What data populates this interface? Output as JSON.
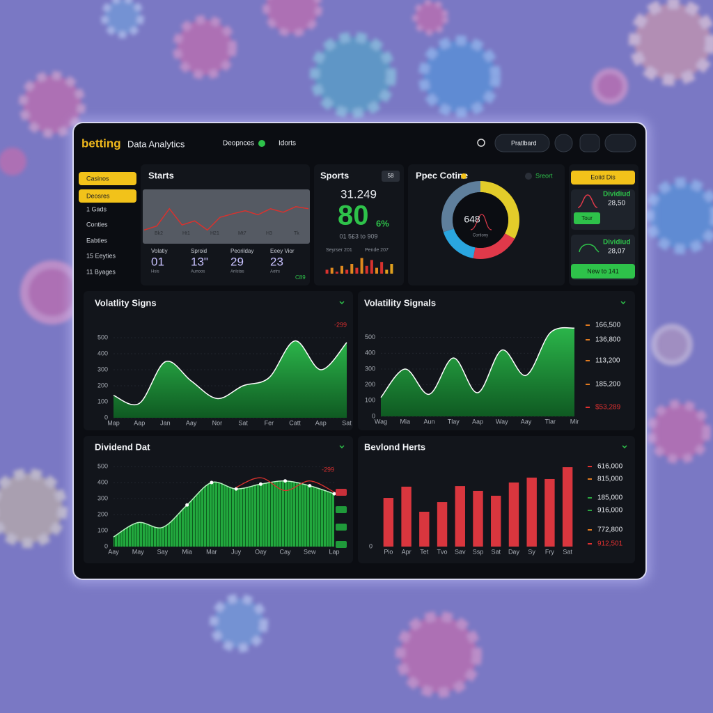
{
  "header": {
    "logo": "betting",
    "title": "Data Analytics",
    "nav": [
      "Deopnces",
      "Idorts"
    ],
    "button": "Pratlbard"
  },
  "sidebar": {
    "items": [
      "Casinos",
      "Deosres",
      "1 Gads",
      "Conties",
      "Eabties",
      "15 Eeyties",
      "11 Byages"
    ]
  },
  "starts": {
    "title": "Starts",
    "axis_labels": [
      "Bk2",
      "Ht1",
      "H21",
      "Mt7",
      "H3",
      "Tk"
    ],
    "stats": [
      {
        "label": "Volatiy",
        "value": "01",
        "sub": "Hsis"
      },
      {
        "label": "Sproid",
        "value": "13\"",
        "sub": "Aunoos"
      },
      {
        "label": "Peorilday",
        "value": "29",
        "sub": "Anlstas"
      },
      {
        "label": "Eeey Vior",
        "value": "23",
        "sub": "Aotrs"
      }
    ],
    "tag": "C89"
  },
  "sports": {
    "title": "Sports",
    "badge": "58",
    "amount": "31.249",
    "big": "80",
    "pct": "6%",
    "sub": "01 5£3 to 909",
    "foot": [
      "Seyrser 201",
      "Pende 207"
    ]
  },
  "donut_panel": {
    "title": "Ppec Cotine",
    "legend": "Sreort"
  },
  "dividends": {
    "button": "Eoiid Dis",
    "cards": [
      {
        "title": "Dividiud",
        "value": "28,50",
        "button": "Tour"
      },
      {
        "title": "Dividiud",
        "value": "28,07",
        "button": "New to 141"
      }
    ]
  },
  "chart_data": [
    {
      "type": "line",
      "color": "#d8322e",
      "ylim": [
        0,
        100
      ],
      "values": [
        20,
        28,
        62,
        30,
        38,
        20,
        45,
        52,
        58,
        50,
        62,
        55,
        66,
        62
      ]
    },
    {
      "type": "bar",
      "ylim": [
        0,
        10
      ],
      "values": [
        2,
        3,
        1,
        4,
        2,
        5,
        3,
        8,
        4,
        7,
        3,
        6,
        2,
        5
      ],
      "colors": [
        "#d8322e",
        "#e08a1e",
        "#d8322e",
        "#e08a1e",
        "#d8322e",
        "#e08a1e",
        "#d8322e",
        "#e08a1e",
        "#d8322e",
        "#d8322e",
        "#e08a1e",
        "#d8322e",
        "#e0a01e",
        "#e0a01e"
      ]
    },
    {
      "type": "pie",
      "values": [
        33,
        20,
        17,
        30
      ],
      "colors": [
        "#e3cc2a",
        "#e0394a",
        "#2aa6e0",
        "#5f7f9c"
      ],
      "center_label": "648",
      "center_sub": "Cortiony"
    },
    {
      "type": "area",
      "title": "Volatlity Signs",
      "color": "#1f9a3a",
      "annotation": "-299",
      "categories": [
        "Map",
        "Aap",
        "Jan",
        "Aay",
        "Nor",
        "Sat",
        "Fer",
        "Catt",
        "Aap",
        "Sat"
      ],
      "values": [
        140,
        90,
        350,
        230,
        120,
        200,
        250,
        480,
        300,
        470
      ],
      "ylim": [
        0,
        600
      ],
      "yticks": [
        0,
        100,
        200,
        300,
        400,
        500
      ]
    },
    {
      "type": "area",
      "title": "Volatility Signals",
      "color": "#1f9a3a",
      "categories": [
        "Wag",
        "Mia",
        "Aun",
        "Tlay",
        "Aap",
        "Way",
        "Aay",
        "Tlar",
        "Mir"
      ],
      "values": [
        120,
        300,
        140,
        370,
        150,
        420,
        260,
        530,
        560
      ],
      "ylim": [
        0,
        600
      ],
      "yticks": [
        0,
        100,
        200,
        300,
        400,
        500
      ],
      "right_labels": [
        "166,500",
        "136,800",
        "113,200",
        "185,200",
        "$53,289"
      ],
      "right_colors": [
        "#e07a20",
        "#e07a20",
        "#e07a20",
        "#e07a20",
        "#e03030"
      ]
    },
    {
      "type": "area",
      "title": "Dividend Dat",
      "annotation": "-299",
      "categories": [
        "Aay",
        "May",
        "Say",
        "Mia",
        "Mar",
        "Juy",
        "Oay",
        "Cay",
        "Sew",
        "Lap"
      ],
      "series": [
        {
          "color": "#1f9a3a",
          "values": [
            60,
            150,
            120,
            260,
            400,
            360,
            390,
            410,
            380,
            330
          ]
        },
        {
          "color": "#d8322e",
          "values": [
            null,
            null,
            null,
            null,
            null,
            370,
            430,
            350,
            410,
            340
          ]
        }
      ],
      "ylim": [
        0,
        500
      ],
      "yticks": [
        0,
        100,
        200,
        300,
        400,
        500
      ]
    },
    {
      "type": "bar",
      "title": "Bevlond Herts",
      "color": "#d9363e",
      "categories": [
        "Pio",
        "Apr",
        "Tet",
        "Tvo",
        "Sav",
        "Ssp",
        "Sat",
        "Day",
        "Sy",
        "Fry",
        "Sat"
      ],
      "values": [
        408,
        502,
        292,
        373,
        507,
        467,
        426,
        537,
        578,
        566,
        665
      ],
      "ylim": [
        0,
        700
      ],
      "yticks": [
        0
      ],
      "right_labels": [
        "616,000",
        "815,000",
        "185,000",
        "916,000",
        "772,800",
        "912,501"
      ],
      "right_colors": [
        "#e03030",
        "#e07a20",
        "#2aa640",
        "#2aa640",
        "#e07a20",
        "#e03030"
      ]
    }
  ]
}
